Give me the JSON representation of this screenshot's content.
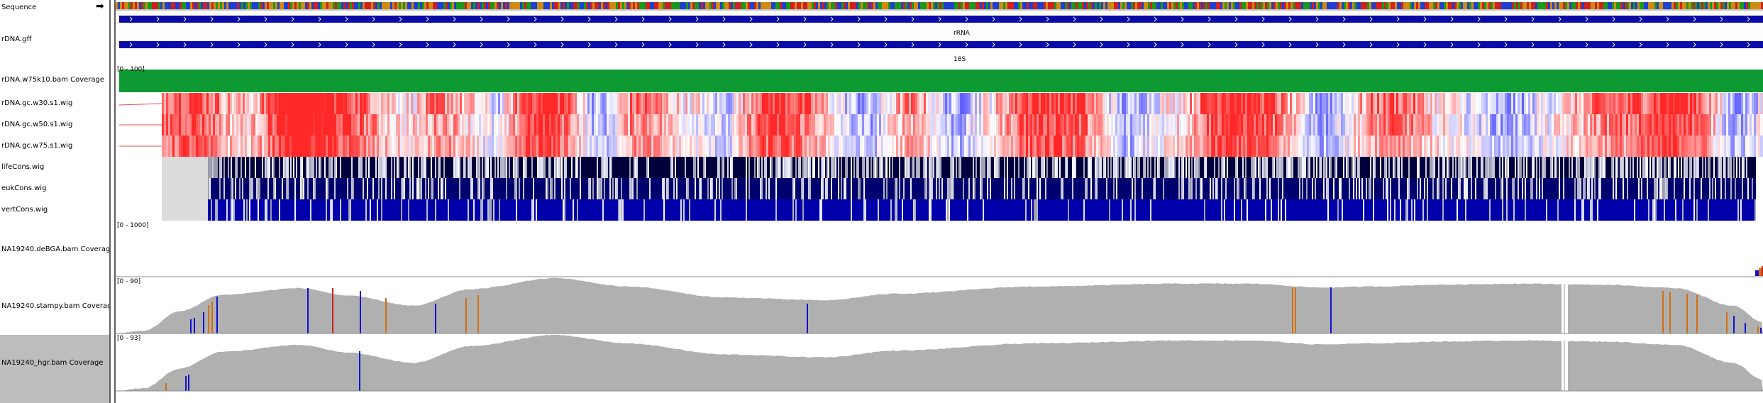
{
  "tracks": {
    "sequence": {
      "name": "Sequence"
    },
    "gff": {
      "name": "rDNA.gff",
      "feature_top": "rRNA",
      "feature_bottom": "18S"
    },
    "coverage_w75": {
      "name": "rDNA.w75k10.bam Coverage",
      "range": "[0 - 100]"
    },
    "gc_w30": {
      "name": "rDNA.gc.w30.s1.wig"
    },
    "gc_w50": {
      "name": "rDNA.gc.w50.s1.wig"
    },
    "gc_w75": {
      "name": "rDNA.gc.w75.s1.wig"
    },
    "life_cons": {
      "name": "lifeCons.wig"
    },
    "euk_cons": {
      "name": "eukCons.wig"
    },
    "vert_cons": {
      "name": "vertCons.wig"
    },
    "debga": {
      "name": "NA19240.deBGA.bam Coverage",
      "range": "[0 - 1000]"
    },
    "stampy": {
      "name": "NA19240.stampy.bam Coverage",
      "range": "[0 - 90]"
    },
    "hgr": {
      "name": "NA19240_hgr.bam Coverage",
      "range": "[0 - 93]"
    }
  },
  "icons": {
    "sequence_strand": "right-arrow-icon"
  },
  "colors": {
    "feature_blue": "#0a0aa6",
    "coverage_green": "#0e9a33",
    "heat_red": "#ff2a2a",
    "heat_blue": "#3a3aff",
    "cons_dark": "#00007a",
    "coverage_gray": "#b0b0b0",
    "mismatch_blue": "#1010d0",
    "mismatch_orange": "#d07010",
    "mismatch_red": "#d02020"
  }
}
